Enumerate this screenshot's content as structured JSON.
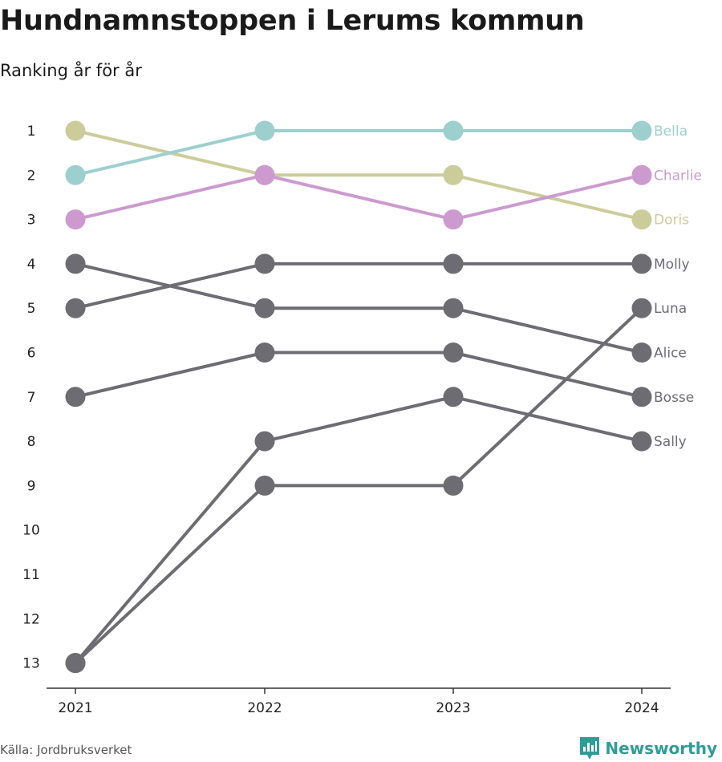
{
  "header": {
    "title": "Hundnamnstoppen i Lerums kommun",
    "subtitle": "Ranking år för år"
  },
  "footer": {
    "source": "Källa: Jordbruksverket",
    "brand": "Newsworthy",
    "brand_color": "#2f9c96"
  },
  "chart_data": {
    "type": "line",
    "subtype": "bump",
    "title": "Hundnamnstoppen i Lerums kommun",
    "subtitle": "Ranking år för år",
    "x": [
      "2021",
      "2022",
      "2023",
      "2024"
    ],
    "y_ticks": [
      "1",
      "2",
      "3",
      "4",
      "5",
      "6",
      "7",
      "8",
      "9",
      "10",
      "11",
      "12",
      "13"
    ],
    "ylim": [
      1,
      13
    ],
    "y_reversed": true,
    "grid": false,
    "legend": "labels at line ends (right)",
    "default_color": "#6d6c72",
    "series": [
      {
        "name": "Bella",
        "values": [
          2,
          1,
          1,
          1
        ],
        "color": "#9ecfcf",
        "highlight": true
      },
      {
        "name": "Charlie",
        "values": [
          3,
          2,
          3,
          2
        ],
        "color": "#cc9acf",
        "highlight": true
      },
      {
        "name": "Doris",
        "values": [
          1,
          2,
          2,
          3
        ],
        "color": "#cccc9a",
        "highlight": true
      },
      {
        "name": "Molly",
        "values": [
          5,
          4,
          4,
          4
        ],
        "color": "#6d6c72",
        "highlight": false
      },
      {
        "name": "Luna",
        "values": [
          13,
          9,
          9,
          5
        ],
        "color": "#6d6c72",
        "highlight": false
      },
      {
        "name": "Alice",
        "values": [
          4,
          5,
          5,
          6
        ],
        "color": "#6d6c72",
        "highlight": false
      },
      {
        "name": "Bosse",
        "values": [
          7,
          6,
          6,
          7
        ],
        "color": "#6d6c72",
        "highlight": false
      },
      {
        "name": "Sally",
        "values": [
          13,
          8,
          7,
          8
        ],
        "color": "#6d6c72",
        "highlight": false
      }
    ]
  }
}
